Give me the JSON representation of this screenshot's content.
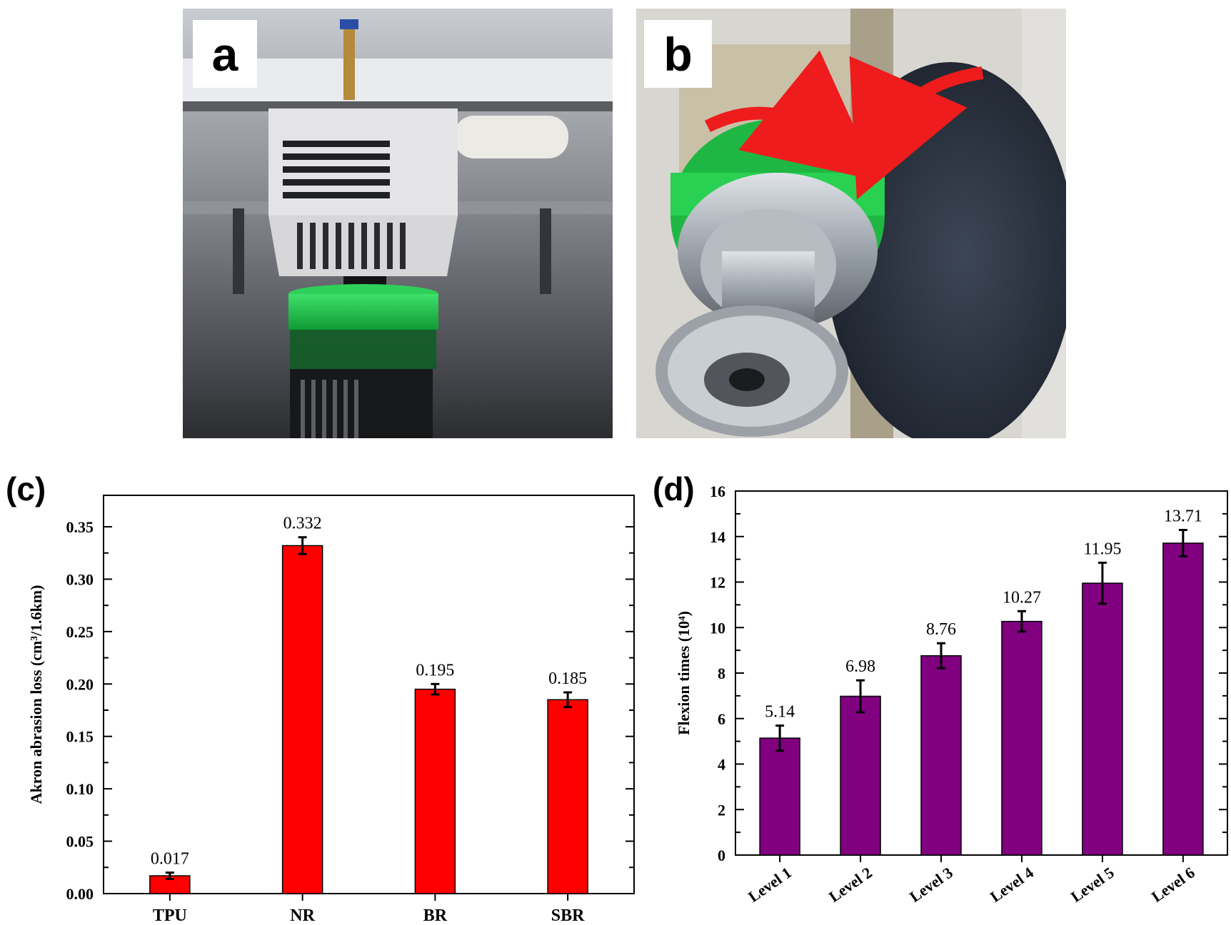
{
  "panels": {
    "a": {
      "label": "a",
      "image": "3d-printer-nozzle-printing-green-tpu-wheel-photo"
    },
    "b": {
      "label": "b",
      "image": "akron-abrasion-tester-green-wheel-against-grinding-wheel-photo"
    }
  },
  "chart_labels": {
    "c": "(c)",
    "d": "(d)"
  },
  "colors": {
    "bar_c": "#ff0000",
    "bar_d": "#800080",
    "arrow": "#ee1c1c",
    "wheel": "#22c04a"
  },
  "chart_data": [
    {
      "type": "bar",
      "categories": [
        "TPU",
        "NR",
        "BR",
        "SBR"
      ],
      "values": [
        0.017,
        0.332,
        0.195,
        0.185
      ],
      "errors": [
        0.003,
        0.008,
        0.005,
        0.007
      ],
      "value_labels": [
        "0.017",
        "0.332",
        "0.195",
        "0.185"
      ],
      "title": "",
      "xlabel": "",
      "ylabel": "Akron abrasion loss (cm³/1.6km)",
      "ylim": [
        0,
        0.38
      ],
      "yticks": [
        0,
        0.05,
        0.1,
        0.15,
        0.2,
        0.25,
        0.3,
        0.35
      ],
      "ytick_labels": [
        "0.00",
        "0.05",
        "0.10",
        "0.15",
        "0.20",
        "0.25",
        "0.30",
        "0.35"
      ],
      "grid": false,
      "color": "#ff0000"
    },
    {
      "type": "bar",
      "categories": [
        "Level 1",
        "Level 2",
        "Level 3",
        "Level 4",
        "Level 5",
        "Level 6"
      ],
      "values": [
        5.14,
        6.98,
        8.76,
        10.27,
        11.95,
        13.71
      ],
      "errors": [
        0.55,
        0.7,
        0.55,
        0.45,
        0.9,
        0.58
      ],
      "value_labels": [
        "5.14",
        "6.98",
        "8.76",
        "10.27",
        "11.95",
        "13.71"
      ],
      "title": "",
      "xlabel": "",
      "ylabel": "Flexion times (10⁴)",
      "ylim": [
        0,
        16
      ],
      "yticks": [
        0,
        2,
        4,
        6,
        8,
        10,
        12,
        14,
        16
      ],
      "ytick_labels": [
        "0",
        "2",
        "4",
        "6",
        "8",
        "10",
        "12",
        "14",
        "16"
      ],
      "grid": false,
      "color": "#800080"
    }
  ]
}
